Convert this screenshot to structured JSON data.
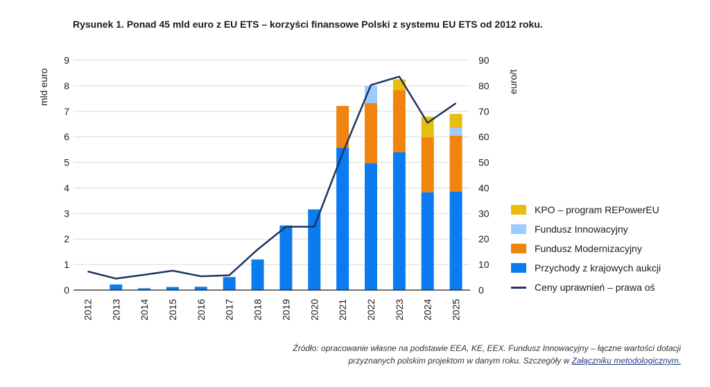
{
  "title": "Rysunek 1. Ponad 45 mld euro z EU ETS – korzyści finansowe Polski z systemu EU ETS od 2012 roku.",
  "source": {
    "line1": "Źródło: opracowanie własne na podstawie EEA, KE, EEX. Fundusz Innowacyjny – łączne wartości dotacji",
    "line2_prefix": "przyznanych polskim projektom w danym roku. Szczegóły w ",
    "line2_link": "Załączniku metodologicznym."
  },
  "chart_data": {
    "type": "bar",
    "stacked": true,
    "categories": [
      "2012",
      "2013",
      "2014",
      "2015",
      "2016",
      "2017",
      "2018",
      "2019",
      "2020",
      "2021",
      "2022",
      "2023",
      "2024",
      "2025"
    ],
    "ylabel": "mld euro",
    "ylabel_right": "euro/t",
    "ylim": [
      0,
      9
    ],
    "ylim_right": [
      0,
      90
    ],
    "yticks": [
      "0",
      "1",
      "2",
      "3",
      "4",
      "5",
      "6",
      "7",
      "8",
      "9"
    ],
    "yticks_right": [
      "0",
      "10",
      "20",
      "30",
      "40",
      "50",
      "60",
      "70",
      "80",
      "90"
    ],
    "grid": true,
    "legend_position": "right",
    "series": [
      {
        "name": "Przychody z krajowych aukcji",
        "color": "#0a7cf0",
        "values": [
          0,
          0.22,
          0.07,
          0.12,
          0.13,
          0.51,
          1.2,
          2.53,
          3.16,
          5.57,
          4.97,
          5.4,
          3.83,
          3.85
        ]
      },
      {
        "name": "Fundusz Modernizacyjny",
        "color": "#f0840e",
        "values": [
          0,
          0,
          0,
          0,
          0,
          0,
          0,
          0,
          0,
          1.64,
          2.35,
          2.42,
          2.15,
          2.2
        ]
      },
      {
        "name": "Fundusz Innowacyjny",
        "color": "#9ccbff",
        "values": [
          0,
          0,
          0,
          0,
          0,
          0,
          0,
          0,
          0,
          0,
          0.68,
          0,
          0,
          0.3
        ]
      },
      {
        "name": "KPO – program REPowerEU",
        "color": "#e8bc10",
        "values": [
          0,
          0,
          0,
          0,
          0,
          0,
          0,
          0,
          0,
          0,
          0,
          0.43,
          0.81,
          0.55
        ]
      }
    ],
    "line_series": {
      "name": "Ceny uprawnień – prawa oś",
      "color": "#1c3460",
      "axis": "right",
      "values": [
        7.3,
        4.5,
        6.0,
        7.6,
        5.4,
        5.8,
        15.9,
        24.8,
        24.8,
        53.6,
        80.3,
        83.6,
        65.5,
        73.2
      ]
    }
  }
}
